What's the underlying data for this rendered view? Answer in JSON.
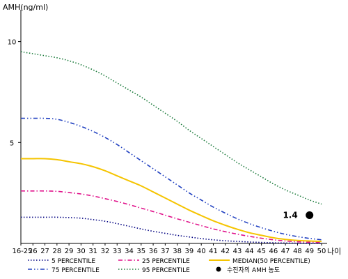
{
  "chart_data": {
    "type": "line",
    "ylabel": "AMH(ng/ml)",
    "xlabel": "나이",
    "yticks": [
      5,
      10
    ],
    "ylim": [
      0,
      11.3
    ],
    "categories": [
      "16-25",
      "26",
      "27",
      "28",
      "29",
      "30",
      "31",
      "32",
      "33",
      "34",
      "35",
      "36",
      "37",
      "38",
      "39",
      "40",
      "41",
      "42",
      "43",
      "44",
      "45",
      "46",
      "47",
      "48",
      "49",
      "50"
    ],
    "series": [
      {
        "name": "5 PERCENTILE",
        "color": "#000080",
        "style": "dotted",
        "values": [
          1.3,
          1.3,
          1.3,
          1.3,
          1.28,
          1.25,
          1.18,
          1.1,
          0.98,
          0.85,
          0.72,
          0.6,
          0.5,
          0.4,
          0.32,
          0.24,
          0.18,
          0.13,
          0.1,
          0.07,
          0.05,
          0.03,
          0.02,
          0.01,
          0.0,
          0.0
        ]
      },
      {
        "name": "25 PERCENTILE",
        "color": "#e0108a",
        "style": "dashdot",
        "values": [
          2.6,
          2.6,
          2.6,
          2.58,
          2.52,
          2.45,
          2.35,
          2.22,
          2.08,
          1.92,
          1.75,
          1.58,
          1.4,
          1.22,
          1.05,
          0.88,
          0.72,
          0.58,
          0.46,
          0.35,
          0.26,
          0.18,
          0.12,
          0.08,
          0.06,
          0.05
        ]
      },
      {
        "name": "MEDIAN(50 PERCENTILE)",
        "color": "#f5c400",
        "style": "solid",
        "values": [
          4.2,
          4.2,
          4.2,
          4.15,
          4.05,
          3.95,
          3.8,
          3.6,
          3.35,
          3.1,
          2.85,
          2.55,
          2.25,
          1.95,
          1.65,
          1.38,
          1.12,
          0.9,
          0.7,
          0.53,
          0.4,
          0.28,
          0.2,
          0.15,
          0.12,
          0.1
        ]
      },
      {
        "name": "75 PERCENTILE",
        "color": "#2040c0",
        "style": "dashdotdot",
        "values": [
          6.2,
          6.2,
          6.2,
          6.15,
          6.0,
          5.8,
          5.55,
          5.25,
          4.9,
          4.5,
          4.1,
          3.7,
          3.3,
          2.9,
          2.5,
          2.15,
          1.8,
          1.5,
          1.22,
          0.98,
          0.78,
          0.6,
          0.45,
          0.34,
          0.25,
          0.18
        ]
      },
      {
        "name": "95 PERCENTILE",
        "color": "#1a7a3a",
        "style": "dotted",
        "values": [
          9.5,
          9.4,
          9.3,
          9.2,
          9.05,
          8.85,
          8.6,
          8.3,
          7.95,
          7.6,
          7.25,
          6.85,
          6.45,
          6.05,
          5.6,
          5.2,
          4.8,
          4.4,
          4.0,
          3.65,
          3.3,
          2.95,
          2.65,
          2.4,
          2.15,
          1.95
        ]
      }
    ],
    "points": [
      {
        "name": "수진자의 AMH 농도",
        "x": "49",
        "y": 1.4,
        "label": "1.4",
        "color": "#000000"
      }
    ],
    "legend_position": "bottom"
  }
}
